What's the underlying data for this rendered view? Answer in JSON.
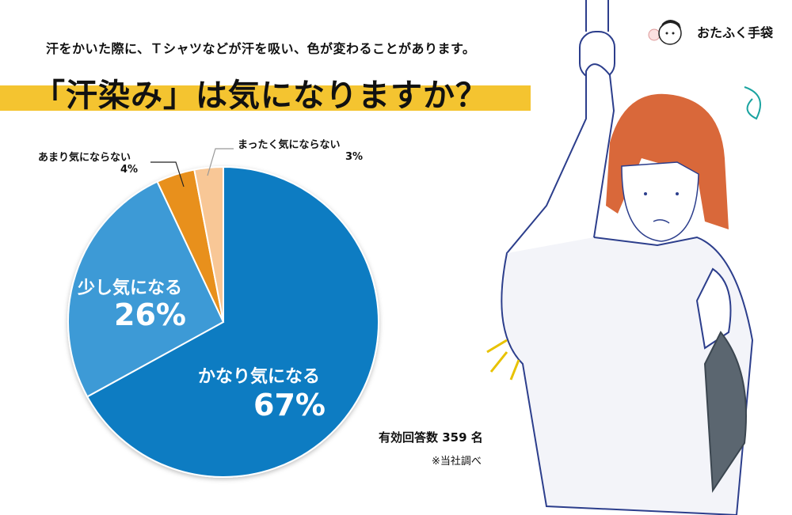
{
  "header": {
    "subtitle": "汗をかいた際に、Ｔシャツなどが汗を吸い、色が変わることがあります。",
    "title": "「汗染み」は気になりますか？",
    "band_color": "#f4c430"
  },
  "logo": {
    "text": "おたふく手袋"
  },
  "chart_data": {
    "type": "pie",
    "title": "「汗染み」は気になりますか？",
    "start": "top",
    "direction": "clockwise",
    "slices": [
      {
        "label": "かなり気になる",
        "value": 67,
        "display": "67%",
        "color": "#0a7bc2"
      },
      {
        "label": "少し気になる",
        "value": 26,
        "display": "26%",
        "color": "#3c9ad6"
      },
      {
        "label": "あまり気にならない",
        "value": 4,
        "display": "4%",
        "color": "#e8901c"
      },
      {
        "label": "まったく気にならない",
        "value": 3,
        "display": "3%",
        "color": "#f8c796"
      }
    ]
  },
  "footer": {
    "respondents": "有効回答数 359 名",
    "source": "※当社調べ"
  },
  "illustration": {
    "subject": "woman-holding-train-strap"
  }
}
